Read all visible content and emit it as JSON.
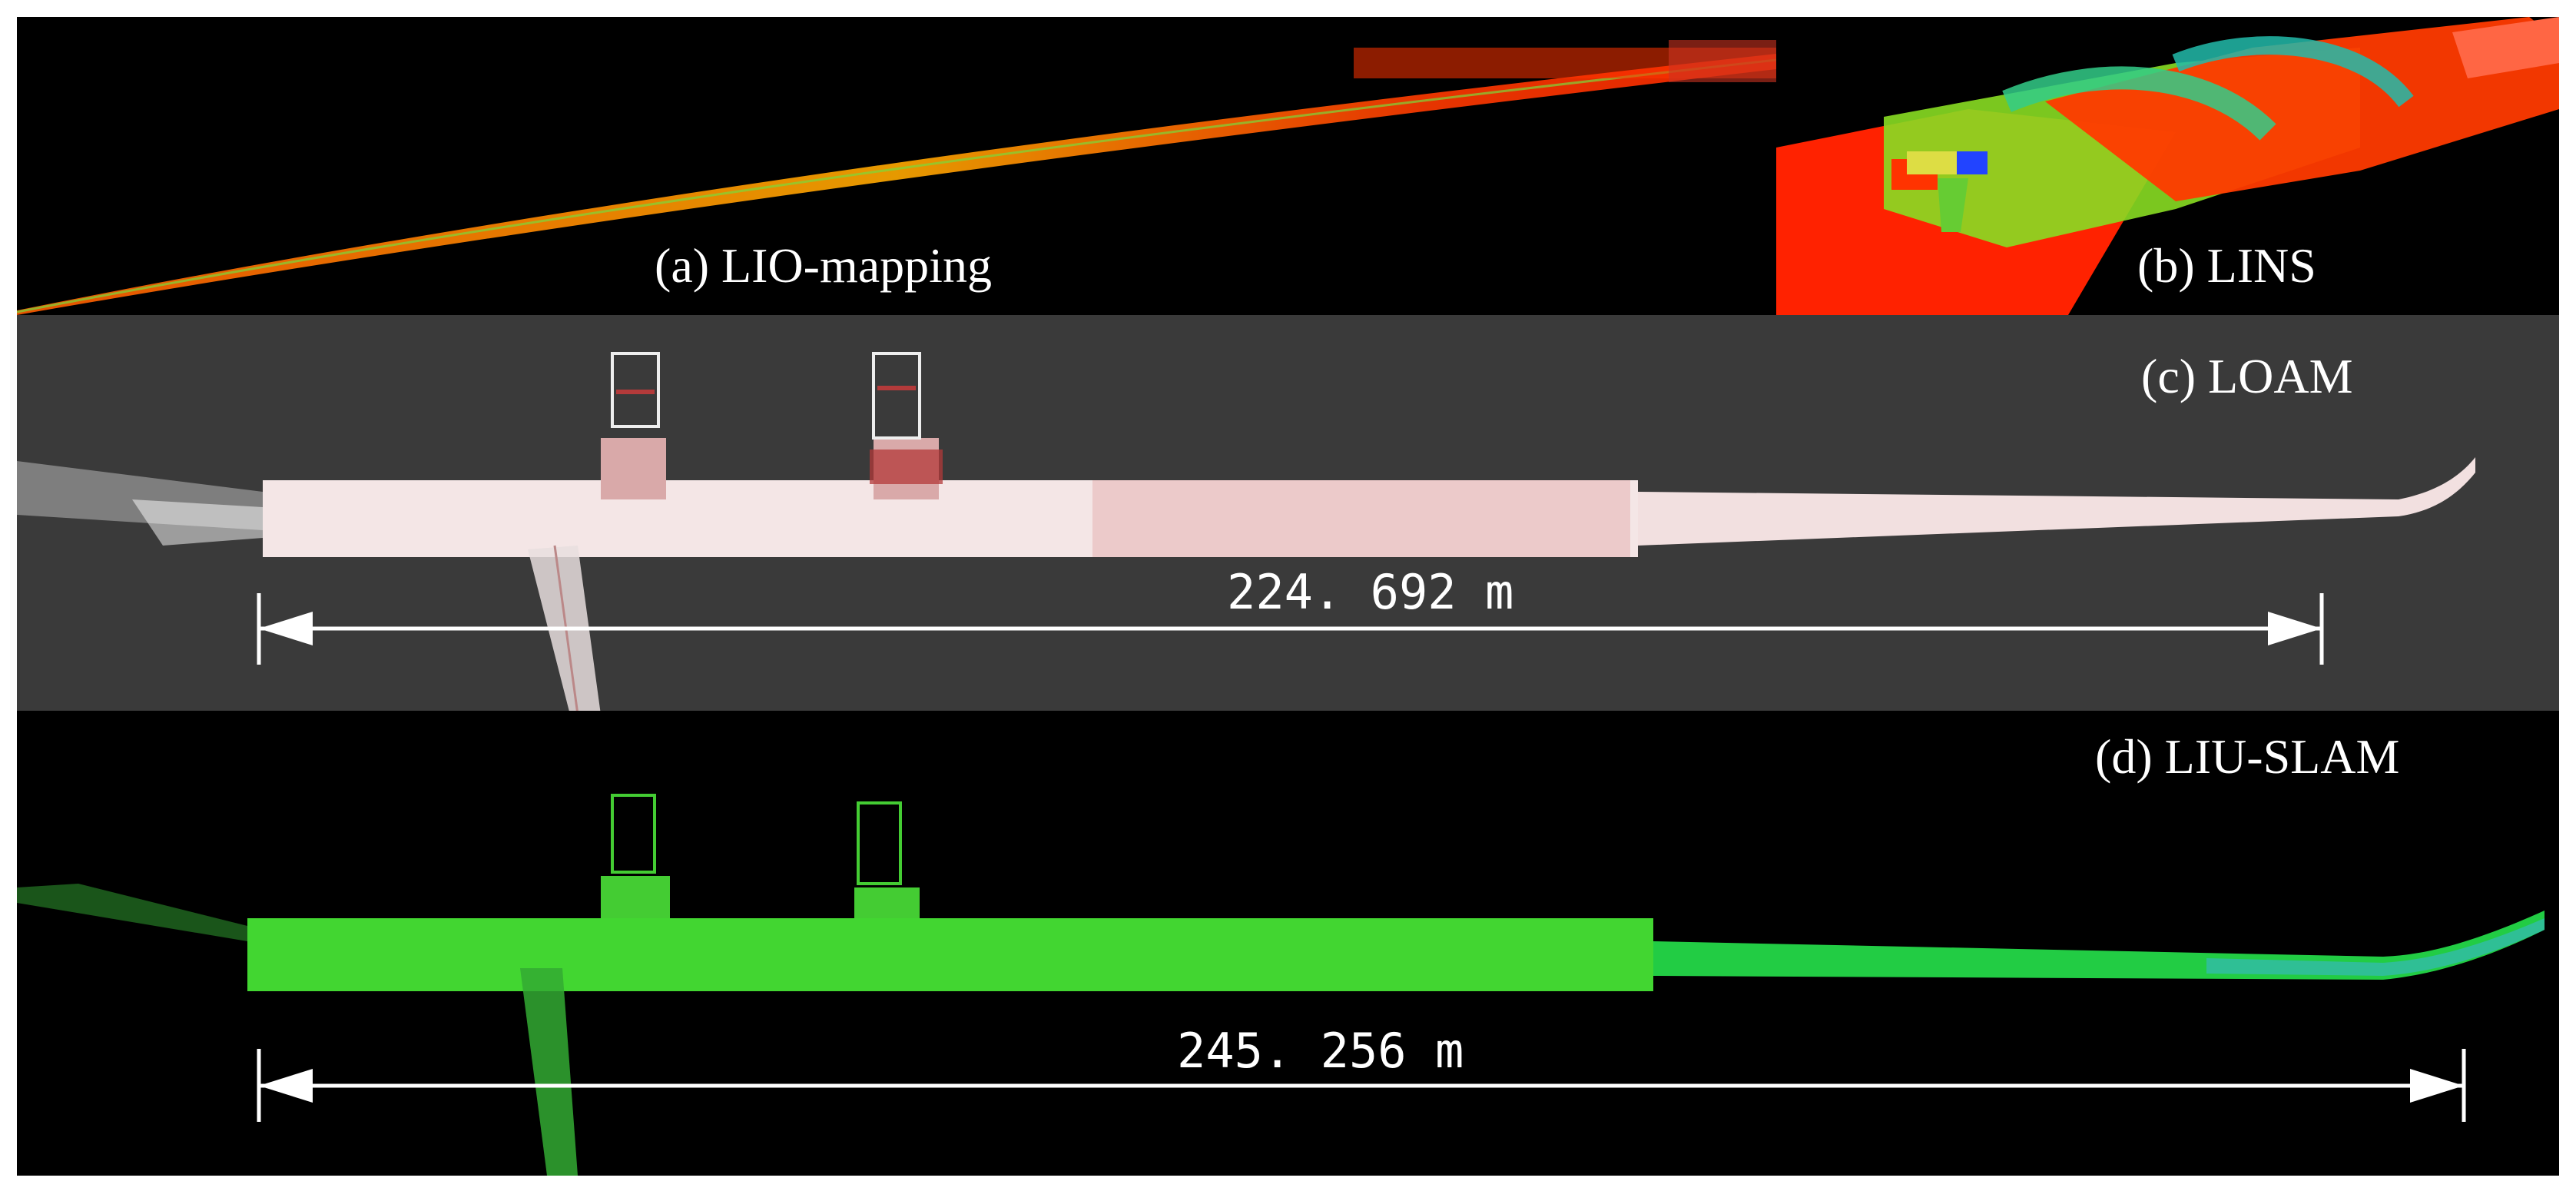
{
  "panels": {
    "a": {
      "caption": "(a) LIO-mapping"
    },
    "b": {
      "caption": "(b) LINS"
    },
    "c": {
      "caption": "(c) LOAM",
      "length_label": "224. 692  m"
    },
    "d": {
      "caption": "(d) LIU-SLAM",
      "length_label": "245. 256  m"
    }
  },
  "colors": {
    "background_dark": "#000000",
    "background_loam": "#3a3a3a",
    "pointcloud_red": "#ff2a00",
    "pointcloud_orange": "#ff8a00",
    "pointcloud_green": "#33dd22",
    "pointcloud_pink": "#f4d2d2",
    "pointcloud_white": "#ffffff",
    "measure_line": "#ffffff"
  }
}
